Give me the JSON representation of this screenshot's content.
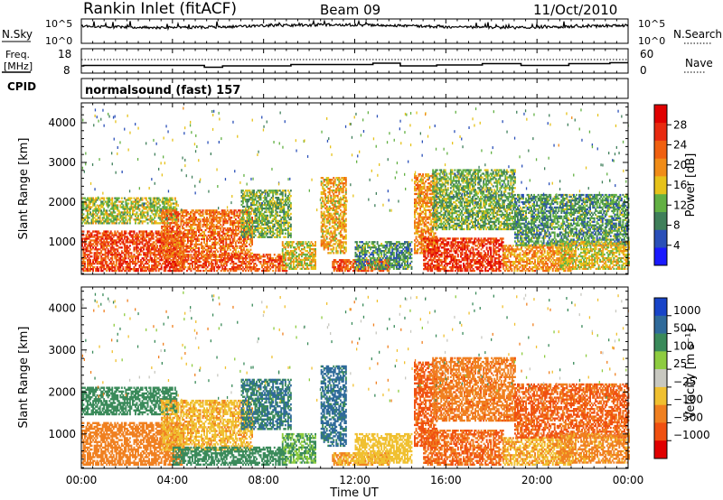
{
  "header": {
    "title": "Rankin Inlet (fitACF)",
    "beam": "Beam 09",
    "date": "11/Oct/2010"
  },
  "colors": {
    "power_scale": [
      "#1a1aff",
      "#2a4fb8",
      "#3f7f5a",
      "#62b043",
      "#e6c21a",
      "#f08c18",
      "#f06010",
      "#e82a10",
      "#e00000"
    ],
    "velocity_scale": [
      "#1844c8",
      "#2f6a9a",
      "#3a8a5a",
      "#8ecc40",
      "#c8c8c0",
      "#f0c030",
      "#f08020",
      "#f05010",
      "#e00000"
    ],
    "background": "#ffffff"
  },
  "nsky_panel": {
    "left_label": "N.Sky",
    "right_label": "N.Search",
    "left_ticks": [
      "10^5",
      "10^0"
    ],
    "right_ticks": [
      "10^5",
      "10^0"
    ]
  },
  "freq_panel": {
    "left_label": "Freq.",
    "left_unit": "[MHz]",
    "left_ticks": [
      "18",
      "8"
    ],
    "right_label": "Nave",
    "right_ticks": [
      "60",
      "0"
    ]
  },
  "cpid": {
    "label": "CPID",
    "text": "normalsound (fast) 157"
  },
  "chart_data": [
    {
      "type": "heatmap",
      "name": "power",
      "ylabel": "Slant Range [km]",
      "xlabel": "",
      "x_ticks": [
        "00:00",
        "04:00",
        "08:00",
        "12:00",
        "16:00",
        "20:00",
        "00:00"
      ],
      "x_range_hours": [
        0,
        24
      ],
      "y_ticks": [
        1000,
        2000,
        3000,
        4000
      ],
      "ylim": [
        180,
        4500
      ],
      "colorbar": {
        "label": "Power [dB]",
        "ticks": [
          "4",
          "8",
          "12",
          "16",
          "20",
          "24",
          "28"
        ],
        "range": [
          0,
          32
        ]
      },
      "grid": false,
      "legend": "right"
    },
    {
      "type": "heatmap",
      "name": "velocity",
      "ylabel": "Slant Range [km]",
      "xlabel": "Time UT",
      "x_ticks": [
        "00:00",
        "04:00",
        "08:00",
        "12:00",
        "16:00",
        "20:00",
        "00:00"
      ],
      "x_range_hours": [
        0,
        24
      ],
      "y_ticks": [
        1000,
        2000,
        3000,
        4000
      ],
      "ylim": [
        180,
        4500
      ],
      "colorbar": {
        "label": "Velocity [m s⁻¹]",
        "ticks": [
          "1000",
          "500",
          "100",
          "25",
          "−25",
          "−100",
          "−500",
          "−1000"
        ]
      },
      "grid": false,
      "legend": "right"
    }
  ]
}
